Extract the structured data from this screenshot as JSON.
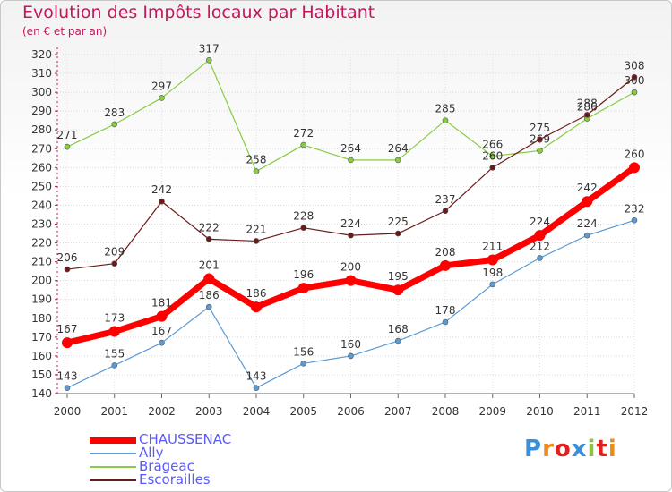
{
  "title": "Evolution des Impôts locaux par Habitant",
  "subtitle": "(en € et par an)",
  "logo_text": "Proxiti",
  "chart_data": {
    "type": "line",
    "title": "Evolution des Impôts locaux par Habitant",
    "ylabel": "(en € et par an)",
    "xlabel": "",
    "categories": [
      "2000",
      "2001",
      "2002",
      "2003",
      "2004",
      "2005",
      "2006",
      "2007",
      "2008",
      "2009",
      "2010",
      "2011",
      "2012"
    ],
    "ylim": [
      140,
      320
    ],
    "yticks": [
      140,
      150,
      160,
      170,
      180,
      190,
      200,
      210,
      220,
      230,
      240,
      250,
      260,
      270,
      280,
      290,
      300,
      310,
      320
    ],
    "legend_position": "bottom-left",
    "series": [
      {
        "name": "Brageac",
        "color": "#88cc44",
        "values": [
          271,
          283,
          297,
          317,
          258,
          272,
          264,
          264,
          285,
          266,
          269,
          286,
          300
        ]
      },
      {
        "name": "Escorailles",
        "color": "#6b1a1a",
        "values": [
          206,
          209,
          242,
          222,
          221,
          228,
          224,
          225,
          237,
          260,
          275,
          288,
          308
        ]
      },
      {
        "name": "Ally",
        "color": "#5b9bd5",
        "values": [
          143,
          155,
          167,
          186,
          143,
          156,
          160,
          168,
          178,
          198,
          212,
          224,
          232
        ]
      },
      {
        "name": "CHAUSSENAC",
        "color": "#ff0000",
        "values": [
          167,
          173,
          181,
          201,
          186,
          196,
          200,
          195,
          208,
          211,
          224,
          242,
          260
        ]
      }
    ],
    "legend_order": [
      "CHAUSSENAC",
      "Ally",
      "Brageac",
      "Escorailles"
    ]
  }
}
